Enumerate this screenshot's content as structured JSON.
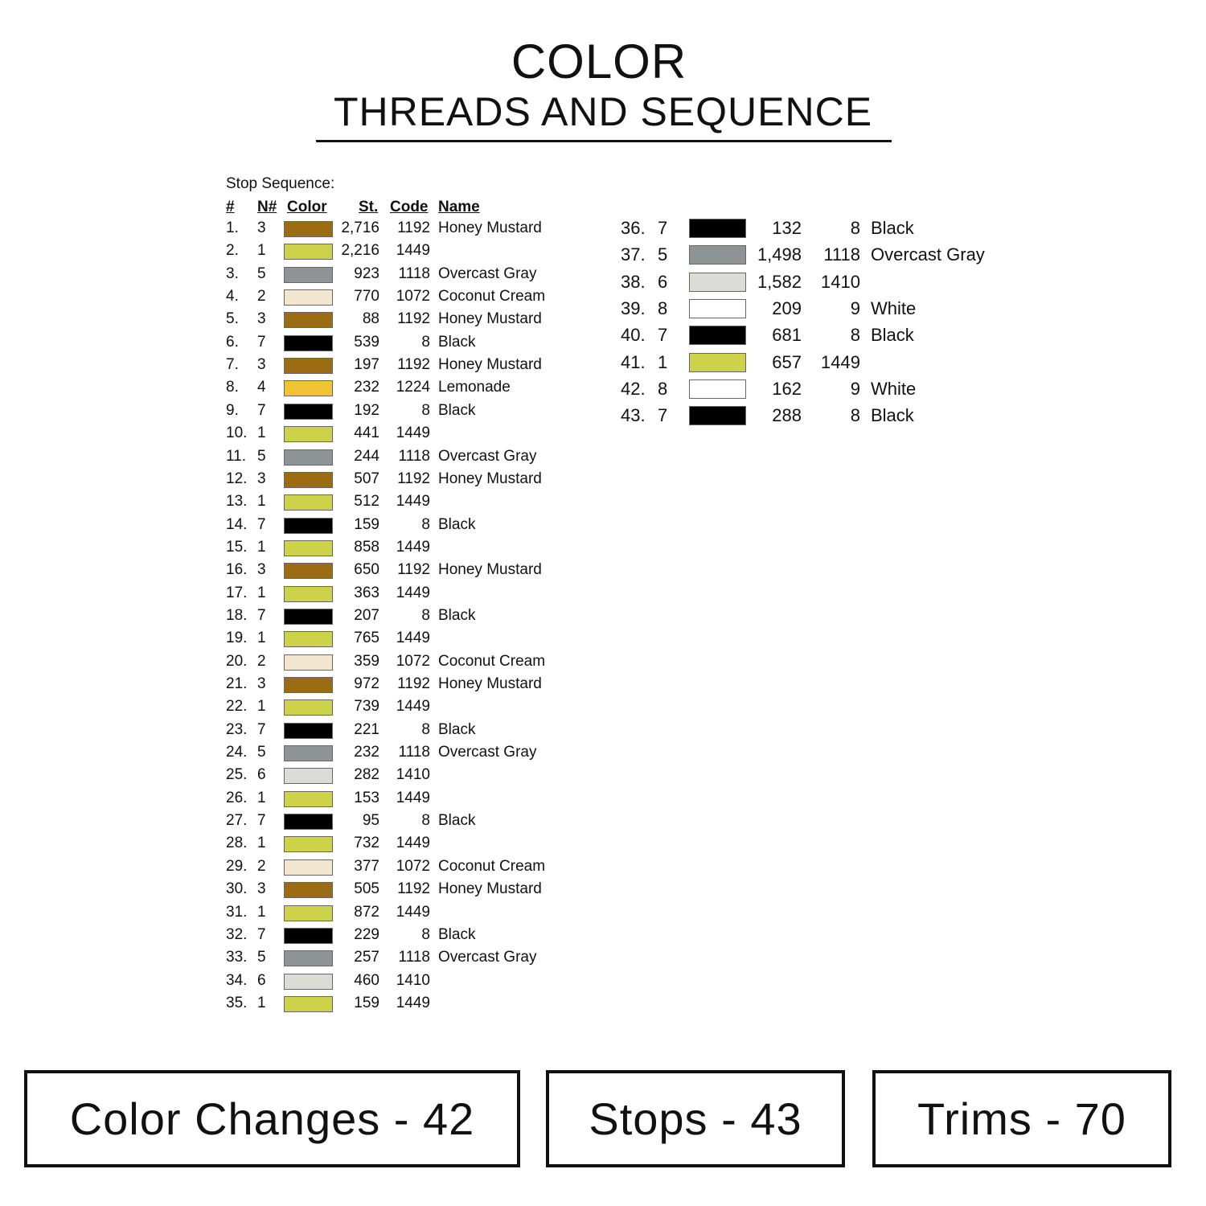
{
  "title": "COLOR",
  "subtitle": "THREADS AND SEQUENCE",
  "stop_label": "Stop Sequence:",
  "headers": {
    "num": "#",
    "needle": "N#",
    "color": "Color",
    "stitches": "St.",
    "code": "Code",
    "name": "Name"
  },
  "thread_colors": {
    "1192": "#9c6c12",
    "1449": "#cdd24a",
    "1118": "#8e9396",
    "1072": "#f3e6cf",
    "8": "#000000",
    "1224": "#f1c232",
    "1410": "#dcdcd6",
    "9": "#ffffff"
  },
  "rows": [
    [
      "1.",
      "3",
      "2,716",
      "1192",
      "Honey Mustard"
    ],
    [
      "2.",
      "1",
      "2,216",
      "1449",
      ""
    ],
    [
      "3.",
      "5",
      "923",
      "1118",
      "Overcast Gray"
    ],
    [
      "4.",
      "2",
      "770",
      "1072",
      "Coconut Cream"
    ],
    [
      "5.",
      "3",
      "88",
      "1192",
      "Honey Mustard"
    ],
    [
      "6.",
      "7",
      "539",
      "8",
      "Black"
    ],
    [
      "7.",
      "3",
      "197",
      "1192",
      "Honey Mustard"
    ],
    [
      "8.",
      "4",
      "232",
      "1224",
      "Lemonade"
    ],
    [
      "9.",
      "7",
      "192",
      "8",
      "Black"
    ],
    [
      "10.",
      "1",
      "441",
      "1449",
      ""
    ],
    [
      "11.",
      "5",
      "244",
      "1118",
      "Overcast Gray"
    ],
    [
      "12.",
      "3",
      "507",
      "1192",
      "Honey Mustard"
    ],
    [
      "13.",
      "1",
      "512",
      "1449",
      ""
    ],
    [
      "14.",
      "7",
      "159",
      "8",
      "Black"
    ],
    [
      "15.",
      "1",
      "858",
      "1449",
      ""
    ],
    [
      "16.",
      "3",
      "650",
      "1192",
      "Honey Mustard"
    ],
    [
      "17.",
      "1",
      "363",
      "1449",
      ""
    ],
    [
      "18.",
      "7",
      "207",
      "8",
      "Black"
    ],
    [
      "19.",
      "1",
      "765",
      "1449",
      ""
    ],
    [
      "20.",
      "2",
      "359",
      "1072",
      "Coconut Cream"
    ],
    [
      "21.",
      "3",
      "972",
      "1192",
      "Honey Mustard"
    ],
    [
      "22.",
      "1",
      "739",
      "1449",
      ""
    ],
    [
      "23.",
      "7",
      "221",
      "8",
      "Black"
    ],
    [
      "24.",
      "5",
      "232",
      "1118",
      "Overcast Gray"
    ],
    [
      "25.",
      "6",
      "282",
      "1410",
      ""
    ],
    [
      "26.",
      "1",
      "153",
      "1449",
      ""
    ],
    [
      "27.",
      "7",
      "95",
      "8",
      "Black"
    ],
    [
      "28.",
      "1",
      "732",
      "1449",
      ""
    ],
    [
      "29.",
      "2",
      "377",
      "1072",
      "Coconut Cream"
    ],
    [
      "30.",
      "3",
      "505",
      "1192",
      "Honey Mustard"
    ],
    [
      "31.",
      "1",
      "872",
      "1449",
      ""
    ],
    [
      "32.",
      "7",
      "229",
      "8",
      "Black"
    ],
    [
      "33.",
      "5",
      "257",
      "1118",
      "Overcast Gray"
    ],
    [
      "34.",
      "6",
      "460",
      "1410",
      ""
    ],
    [
      "35.",
      "1",
      "159",
      "1449",
      ""
    ],
    [
      "36.",
      "7",
      "132",
      "8",
      "Black"
    ],
    [
      "37.",
      "5",
      "1,498",
      "1118",
      "Overcast Gray"
    ],
    [
      "38.",
      "6",
      "1,582",
      "1410",
      ""
    ],
    [
      "39.",
      "8",
      "209",
      "9",
      "White"
    ],
    [
      "40.",
      "7",
      "681",
      "8",
      "Black"
    ],
    [
      "41.",
      "1",
      "657",
      "1449",
      ""
    ],
    [
      "42.",
      "8",
      "162",
      "9",
      "White"
    ],
    [
      "43.",
      "7",
      "288",
      "8",
      "Black"
    ]
  ],
  "summary": {
    "color_changes": "Color Changes - 42",
    "stops": "Stops - 43",
    "trims": "Trims - 70"
  }
}
